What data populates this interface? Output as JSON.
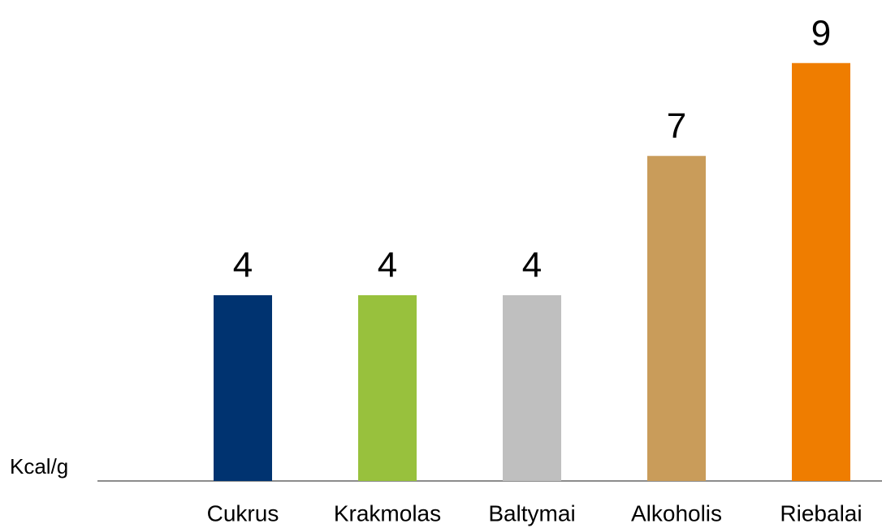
{
  "chart_data": {
    "type": "bar",
    "y_axis_label": "Kcal/g",
    "categories": [
      "Cukrus",
      "Krakmolas",
      "Baltymai",
      "Alkoholis",
      "Riebalai"
    ],
    "values": [
      4,
      4,
      4,
      7,
      9
    ],
    "colors": [
      "#003370",
      "#98c13d",
      "#bfbfbf",
      "#c99c5a",
      "#ef7d00"
    ],
    "ylim": [
      0,
      10
    ]
  }
}
